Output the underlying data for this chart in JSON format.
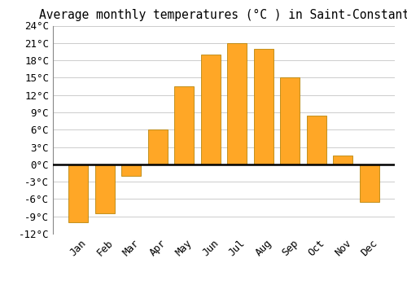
{
  "months": [
    "Jan",
    "Feb",
    "Mar",
    "Apr",
    "May",
    "Jun",
    "Jul",
    "Aug",
    "Sep",
    "Oct",
    "Nov",
    "Dec"
  ],
  "values": [
    -10.0,
    -8.5,
    -2.0,
    6.0,
    13.5,
    19.0,
    21.0,
    20.0,
    15.0,
    8.5,
    1.5,
    -6.5
  ],
  "bar_color": "#FFA726",
  "bar_edge_color": "#B8860B",
  "title": "Average monthly temperatures (°C ) in Saint-Constant",
  "ylim": [
    -12,
    24
  ],
  "yticks": [
    -12,
    -9,
    -6,
    -3,
    0,
    3,
    6,
    9,
    12,
    15,
    18,
    21,
    24
  ],
  "background_color": "#FFFFFF",
  "grid_color": "#CCCCCC",
  "title_fontsize": 10.5,
  "tick_fontsize": 9,
  "zero_line_color": "#000000",
  "bar_width": 0.75
}
